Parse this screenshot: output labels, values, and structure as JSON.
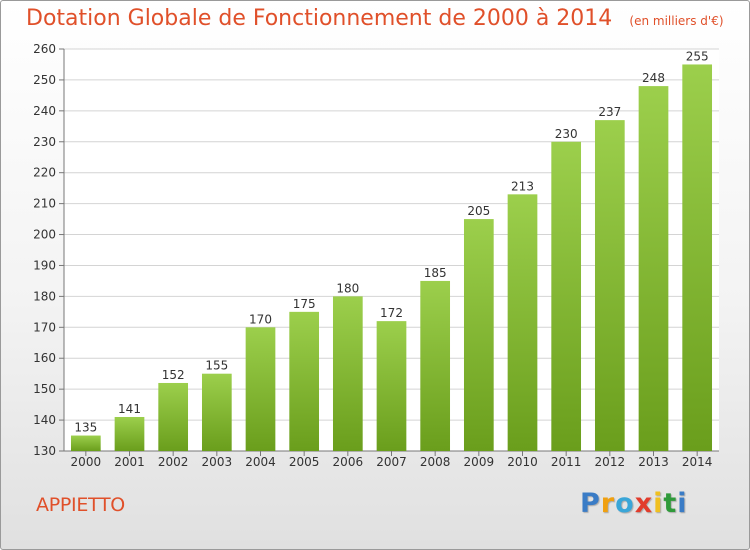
{
  "chart_data": {
    "type": "bar",
    "title": "Dotation Globale de Fonctionnement de 2000 à 2014",
    "subtitle": "(en milliers d'€)",
    "categories": [
      "2000",
      "2001",
      "2002",
      "2003",
      "2004",
      "2005",
      "2006",
      "2007",
      "2008",
      "2009",
      "2010",
      "2011",
      "2012",
      "2013",
      "2014"
    ],
    "values": [
      135,
      141,
      152,
      155,
      170,
      175,
      180,
      172,
      185,
      205,
      213,
      230,
      237,
      248,
      255
    ],
    "ylim": [
      130,
      260
    ],
    "yticks": [
      130,
      140,
      150,
      160,
      170,
      180,
      190,
      200,
      210,
      220,
      230,
      240,
      250,
      260
    ],
    "grid": true,
    "legend": "none",
    "colors": {
      "bar_light": "#9ccf4c",
      "bar_dark": "#6a9e1c",
      "title": "#e0502a",
      "grid": "#d4d4d4"
    }
  },
  "commune": "APPIETTO",
  "logo": {
    "letters": [
      "P",
      "r",
      "o",
      "x",
      "i",
      "t",
      "i"
    ],
    "colors": [
      "#3a7cc6",
      "#f0a010",
      "#3aa6d8",
      "#e23c2c",
      "#f0c020",
      "#2f9a3a",
      "#3a7cc6"
    ]
  }
}
